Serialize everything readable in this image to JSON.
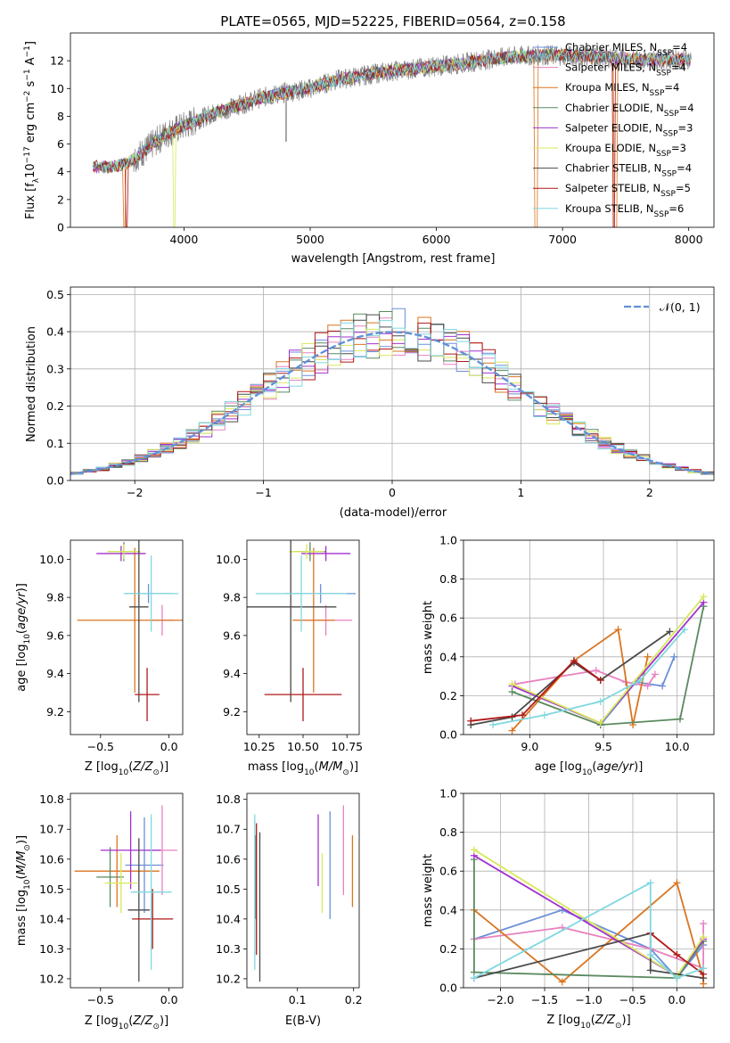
{
  "figure_title": "PLATE=0565, MJD=52225, FIBERID=0564, z=0.158",
  "colors": {
    "Chabrier MILES": "#6b8fd8",
    "Salpeter MILES": "#e882c0",
    "Kroupa MILES": "#d97520",
    "Chabrier ELODIE": "#5a8a60",
    "Salpeter ELODIE": "#a330d0",
    "Kroupa ELODIE": "#d8e85a",
    "Chabrier STELIB": "#4a4a4a",
    "Salpeter STELIB": "#b01818",
    "Kroupa STELIB": "#80d8e0",
    "data": "#808080",
    "normal": "#6090d8"
  },
  "legend_order": [
    "Chabrier MILES",
    "Salpeter MILES",
    "Kroupa MILES",
    "Chabrier ELODIE",
    "Salpeter ELODIE",
    "Kroupa ELODIE",
    "Chabrier STELIB",
    "Salpeter STELIB",
    "Kroupa STELIB"
  ],
  "chart_data": [
    {
      "id": "spectrum",
      "type": "line",
      "title": "PLATE=0565, MJD=52225, FIBERID=0564, z=0.158",
      "xlabel": "wavelength [Angstrom, rest frame]",
      "ylabel": "Flux [f_λ 10^-17 erg cm^-2 s^-1 A^-1]",
      "xlim": [
        3100,
        8200
      ],
      "ylim": [
        0,
        14
      ],
      "xticks": [
        4000,
        5000,
        6000,
        7000,
        8000
      ],
      "yticks": [
        0,
        2,
        4,
        6,
        8,
        10,
        12
      ],
      "grid": false,
      "legend_position": "top-right",
      "data_range": [
        3280,
        8020
      ],
      "continuum": [
        [
          3280,
          4.4
        ],
        [
          3400,
          4.3
        ],
        [
          3550,
          4.6
        ],
        [
          3700,
          5.6
        ],
        [
          3850,
          6.7
        ],
        [
          4000,
          7.3
        ],
        [
          4200,
          8.1
        ],
        [
          4400,
          8.7
        ],
        [
          4600,
          9.3
        ],
        [
          4800,
          9.7
        ],
        [
          5000,
          10.0
        ],
        [
          5200,
          10.6
        ],
        [
          5400,
          10.9
        ],
        [
          5600,
          11.2
        ],
        [
          5800,
          11.4
        ],
        [
          6000,
          11.6
        ],
        [
          6200,
          11.8
        ],
        [
          6400,
          12.1
        ],
        [
          6600,
          12.3
        ],
        [
          6800,
          12.4
        ],
        [
          7000,
          12.4
        ],
        [
          7200,
          12.3
        ],
        [
          7400,
          12.2
        ],
        [
          7600,
          12.1
        ],
        [
          7800,
          12.1
        ],
        [
          8020,
          12.1
        ]
      ],
      "series": [
        {
          "name": "Chabrier MILES",
          "N_SSP": 4,
          "dropouts": []
        },
        {
          "name": "Salpeter MILES",
          "N_SSP": 4,
          "dropouts": []
        },
        {
          "name": "Kroupa MILES",
          "N_SSP": 4,
          "dropouts": [
            3530,
            6790,
            7420
          ]
        },
        {
          "name": "Chabrier ELODIE",
          "N_SSP": 4,
          "dropouts": []
        },
        {
          "name": "Salpeter ELODIE",
          "N_SSP": 3,
          "dropouts": []
        },
        {
          "name": "Kroupa ELODIE",
          "N_SSP": 3,
          "dropouts": [
            3920
          ]
        },
        {
          "name": "Chabrier STELIB",
          "N_SSP": 4,
          "dropouts": []
        },
        {
          "name": "Salpeter STELIB",
          "N_SSP": 5,
          "dropouts": [
            3545,
            7410
          ]
        },
        {
          "name": "Kroupa STELIB",
          "N_SSP": 6,
          "dropouts": []
        }
      ],
      "data_spikes": [
        4810
      ]
    },
    {
      "id": "residual-hist",
      "type": "line",
      "xlabel": "(data-model)/error",
      "ylabel": "Normed distribution",
      "xlim": [
        -2.5,
        2.5
      ],
      "ylim": [
        0,
        0.52
      ],
      "xticks": [
        -2,
        -1,
        0,
        1,
        2
      ],
      "xtick_labels": [
        "−2",
        "−1",
        "0",
        "1",
        "2"
      ],
      "yticks": [
        0,
        0.1,
        0.2,
        0.3,
        0.4,
        0.5
      ],
      "ytick_labels": [
        "0.0",
        "0.1",
        "0.2",
        "0.3",
        "0.4",
        "0.5"
      ],
      "grid": true,
      "legend_position": "top-right",
      "reference": {
        "name": "𝒩(0, 1)",
        "mean": 0,
        "sigma": 1
      },
      "bin_width": 0.1
    },
    {
      "id": "age-vs-Z",
      "type": "scatter",
      "xlabel": "Z [log10(Z/Z⊙)]",
      "ylabel": "age  [log10(age/yr)]",
      "xlim": [
        -0.72,
        0.1
      ],
      "ylim": [
        9.08,
        10.1
      ],
      "xticks": [
        -0.5,
        0
      ],
      "xtick_labels": [
        "−0.5",
        "0.0"
      ],
      "yticks": [
        9.2,
        9.4,
        9.6,
        9.8,
        10.0
      ],
      "ytick_labels": [
        "9.2",
        "9.4",
        "9.6",
        "9.8",
        "10.0"
      ],
      "grid": false,
      "points": [
        {
          "series": "Chabrier MILES",
          "x": -0.15,
          "xerr": 0.17,
          "y": 9.82,
          "yerr": 0.05
        },
        {
          "series": "Salpeter MILES",
          "x": -0.05,
          "xerr": 0.09,
          "y": 9.68,
          "yerr": 0.08
        },
        {
          "series": "Kroupa MILES",
          "x": -0.25,
          "xerr": 0.42,
          "y": 9.68,
          "yerr": 0.38
        },
        {
          "series": "Chabrier ELODIE",
          "x": -0.33,
          "xerr": 0.12,
          "y": 10.04,
          "yerr": 0.05
        },
        {
          "series": "Salpeter ELODIE",
          "x": -0.35,
          "xerr": 0.18,
          "y": 10.03,
          "yerr": 0.04
        },
        {
          "series": "Kroupa ELODIE",
          "x": -0.33,
          "xerr": 0.12,
          "y": 10.04,
          "yerr": 0.04
        },
        {
          "series": "Chabrier STELIB",
          "x": -0.22,
          "xerr": 0.07,
          "y": 9.75,
          "yerr": 0.5
        },
        {
          "series": "Salpeter STELIB",
          "x": -0.16,
          "xerr": 0.09,
          "y": 9.29,
          "yerr": 0.14
        },
        {
          "series": "Kroupa STELIB",
          "x": -0.13,
          "xerr": 0.2,
          "y": 9.82,
          "yerr": 0.2
        }
      ]
    },
    {
      "id": "age-vs-mass",
      "type": "scatter",
      "xlabel": "mass [log10(M/M⊙)]",
      "xlim": [
        10.18,
        10.82
      ],
      "ylim": [
        9.08,
        10.1
      ],
      "xticks": [
        10.25,
        10.5,
        10.75
      ],
      "xtick_labels": [
        "10.25",
        "10.50",
        "10.75"
      ],
      "yticks": [
        9.2,
        9.4,
        9.6,
        9.8,
        10.0
      ],
      "ytick_labels": [
        "9.2",
        "9.4",
        "9.6",
        "9.8",
        "10.0"
      ],
      "grid": false,
      "points": [
        {
          "series": "Chabrier MILES",
          "x": 10.6,
          "xerr": 0.2,
          "y": 9.82,
          "yerr": 0.05
        },
        {
          "series": "Salpeter MILES",
          "x": 10.63,
          "xerr": 0.15,
          "y": 9.68,
          "yerr": 0.08
        },
        {
          "series": "Kroupa MILES",
          "x": 10.56,
          "xerr": 0.12,
          "y": 9.68,
          "yerr": 0.38
        },
        {
          "series": "Chabrier ELODIE",
          "x": 10.54,
          "xerr": 0.09,
          "y": 10.04,
          "yerr": 0.05
        },
        {
          "series": "Salpeter ELODIE",
          "x": 10.63,
          "xerr": 0.14,
          "y": 10.03,
          "yerr": 0.04
        },
        {
          "series": "Kroupa ELODIE",
          "x": 10.52,
          "xerr": 0.1,
          "y": 10.04,
          "yerr": 0.04
        },
        {
          "series": "Chabrier STELIB",
          "x": 10.43,
          "xerr": 0.26,
          "y": 9.75,
          "yerr": 0.5
        },
        {
          "series": "Salpeter STELIB",
          "x": 10.5,
          "xerr": 0.22,
          "y": 9.29,
          "yerr": 0.14
        },
        {
          "series": "Kroupa STELIB",
          "x": 10.49,
          "xerr": 0.26,
          "y": 9.82,
          "yerr": 0.2
        }
      ]
    },
    {
      "id": "weight-vs-age",
      "type": "line",
      "xlabel": "age  [log10(age/yr)]",
      "ylabel": "mass weight",
      "xlim": [
        8.55,
        10.25
      ],
      "ylim": [
        0,
        1
      ],
      "xticks": [
        9.0,
        9.5,
        10.0
      ],
      "xtick_labels": [
        "9.0",
        "9.5",
        "10.0"
      ],
      "yticks": [
        0,
        0.2,
        0.4,
        0.6,
        0.8,
        1.0
      ],
      "ytick_labels": [
        "0.0",
        "0.2",
        "0.4",
        "0.6",
        "0.8",
        "1.0"
      ],
      "grid": true,
      "series": [
        {
          "name": "Chabrier MILES",
          "x": [
            9.48,
            9.72,
            9.9,
            9.98
          ],
          "y": [
            0.05,
            0.27,
            0.25,
            0.4
          ]
        },
        {
          "name": "Salpeter MILES",
          "x": [
            8.9,
            9.45,
            9.65,
            9.8,
            9.85
          ],
          "y": [
            0.26,
            0.33,
            0.27,
            0.25,
            0.31
          ]
        },
        {
          "name": "Kroupa MILES",
          "x": [
            8.88,
            9.3,
            9.6,
            9.7,
            9.8
          ],
          "y": [
            0.02,
            0.38,
            0.54,
            0.05,
            0.4
          ]
        },
        {
          "name": "Chabrier ELODIE",
          "x": [
            8.88,
            9.48,
            10.02,
            10.18
          ],
          "y": [
            0.22,
            0.05,
            0.08,
            0.66
          ]
        },
        {
          "name": "Salpeter ELODIE",
          "x": [
            8.88,
            9.48,
            10.18
          ],
          "y": [
            0.25,
            0.06,
            0.68
          ]
        },
        {
          "name": "Kroupa ELODIE",
          "x": [
            8.88,
            9.48,
            10.18
          ],
          "y": [
            0.26,
            0.06,
            0.71
          ]
        },
        {
          "name": "Chabrier STELIB",
          "x": [
            8.6,
            8.88,
            9.3,
            9.48,
            9.95
          ],
          "y": [
            0.05,
            0.09,
            0.37,
            0.28,
            0.53
          ]
        },
        {
          "name": "Salpeter STELIB",
          "x": [
            8.6,
            8.95,
            9.3,
            9.48
          ],
          "y": [
            0.07,
            0.1,
            0.38,
            0.28
          ]
        },
        {
          "name": "Kroupa STELIB",
          "x": [
            8.75,
            9.1,
            9.48,
            9.75,
            10.05
          ],
          "y": [
            0.05,
            0.1,
            0.17,
            0.28,
            0.54
          ]
        }
      ]
    },
    {
      "id": "mass-vs-Z",
      "type": "scatter",
      "xlabel": "Z [log10(Z/Z⊙)]",
      "ylabel": "mass [log10(M/M⊙)]",
      "xlim": [
        -0.72,
        0.1
      ],
      "ylim": [
        10.17,
        10.82
      ],
      "xticks": [
        -0.5,
        0
      ],
      "xtick_labels": [
        "−0.5",
        "0.0"
      ],
      "yticks": [
        10.2,
        10.3,
        10.4,
        10.5,
        10.6,
        10.7,
        10.8
      ],
      "ytick_labels": [
        "10.2",
        "10.3",
        "10.4",
        "10.5",
        "10.6",
        "10.7",
        "10.8"
      ],
      "grid": false,
      "points": [
        {
          "series": "Chabrier MILES",
          "x": -0.18,
          "xerr": 0.14,
          "y": 10.58,
          "yerr": 0.16
        },
        {
          "series": "Salpeter MILES",
          "x": -0.05,
          "xerr": 0.11,
          "y": 10.63,
          "yerr": 0.15
        },
        {
          "series": "Kroupa MILES",
          "x": -0.38,
          "xerr": 0.31,
          "y": 10.56,
          "yerr": 0.12
        },
        {
          "series": "Chabrier ELODIE",
          "x": -0.43,
          "xerr": 0.1,
          "y": 10.54,
          "yerr": 0.1
        },
        {
          "series": "Salpeter ELODIE",
          "x": -0.28,
          "xerr": 0.22,
          "y": 10.63,
          "yerr": 0.13
        },
        {
          "series": "Kroupa ELODIE",
          "x": -0.35,
          "xerr": 0.12,
          "y": 10.52,
          "yerr": 0.1
        },
        {
          "series": "Chabrier STELIB",
          "x": -0.22,
          "xerr": 0.08,
          "y": 10.43,
          "yerr": 0.24
        },
        {
          "series": "Salpeter STELIB",
          "x": -0.12,
          "xerr": 0.15,
          "y": 10.4,
          "yerr": 0.1
        },
        {
          "series": "Kroupa STELIB",
          "x": -0.13,
          "xerr": 0.15,
          "y": 10.49,
          "yerr": 0.26
        }
      ]
    },
    {
      "id": "mass-vs-EBV",
      "type": "scatter",
      "xlabel": "E(B-V)",
      "xlim": [
        0.01,
        0.21
      ],
      "ylim": [
        10.17,
        10.82
      ],
      "xticks": [
        0.1,
        0.2
      ],
      "xtick_labels": [
        "0.1",
        "0.2"
      ],
      "yticks": [
        10.2,
        10.3,
        10.4,
        10.5,
        10.6,
        10.7,
        10.8
      ],
      "ytick_labels": [
        "10.2",
        "10.3",
        "10.4",
        "10.5",
        "10.6",
        "10.7",
        "10.8"
      ],
      "grid": false,
      "points": [
        {
          "series": "Chabrier MILES",
          "x": 0.158,
          "xerr": 0,
          "y": 10.58,
          "yerr": 0.18
        },
        {
          "series": "Salpeter MILES",
          "x": 0.182,
          "xerr": 0,
          "y": 10.63,
          "yerr": 0.15
        },
        {
          "series": "Kroupa MILES",
          "x": 0.198,
          "xerr": 0,
          "y": 10.56,
          "yerr": 0.12
        },
        {
          "series": "Chabrier ELODIE",
          "x": 0.026,
          "xerr": 0,
          "y": 10.54,
          "yerr": 0.14
        },
        {
          "series": "Salpeter ELODIE",
          "x": 0.137,
          "xerr": 0,
          "y": 10.63,
          "yerr": 0.12
        },
        {
          "series": "Kroupa ELODIE",
          "x": 0.144,
          "xerr": 0,
          "y": 10.52,
          "yerr": 0.1
        },
        {
          "series": "Chabrier STELIB",
          "x": 0.033,
          "xerr": 0,
          "y": 10.44,
          "yerr": 0.25
        },
        {
          "series": "Salpeter STELIB",
          "x": 0.027,
          "xerr": 0,
          "y": 10.5,
          "yerr": 0.22
        },
        {
          "series": "Kroupa STELIB",
          "x": 0.024,
          "xerr": 0,
          "y": 10.49,
          "yerr": 0.26
        }
      ]
    },
    {
      "id": "weight-vs-Z",
      "type": "line",
      "xlabel": "Z [log10(Z/Z⊙)]",
      "ylabel": "mass weight",
      "xlim": [
        -2.42,
        0.42
      ],
      "ylim": [
        0,
        1
      ],
      "xticks": [
        -2.0,
        -1.5,
        -1.0,
        -0.5,
        0.0
      ],
      "xtick_labels": [
        "−2.0",
        "−1.5",
        "−1.0",
        "−0.5",
        "0.0"
      ],
      "yticks": [
        0,
        0.2,
        0.4,
        0.6,
        0.8,
        1.0
      ],
      "ytick_labels": [
        "0.0",
        "0.2",
        "0.4",
        "0.6",
        "0.8",
        "1.0"
      ],
      "grid": true,
      "series": [
        {
          "name": "Chabrier MILES",
          "x": [
            -2.3,
            -1.3,
            -0.3,
            0.0,
            0.3
          ],
          "y": [
            0.25,
            0.4,
            0.2,
            0.05,
            0.22
          ]
        },
        {
          "name": "Salpeter MILES",
          "x": [
            -2.3,
            -1.3,
            -0.3,
            0.3,
            0.3
          ],
          "y": [
            0.25,
            0.31,
            0.2,
            0.1,
            0.33
          ]
        },
        {
          "name": "Kroupa MILES",
          "x": [
            -2.3,
            -1.3,
            0.0,
            0.3,
            0.3
          ],
          "y": [
            0.4,
            0.03,
            0.54,
            0.05,
            0.02
          ]
        },
        {
          "name": "Chabrier ELODIE",
          "x": [
            -2.3,
            -2.3,
            0.0,
            0.3
          ],
          "y": [
            0.66,
            0.08,
            0.05,
            0.24
          ]
        },
        {
          "name": "Salpeter ELODIE",
          "x": [
            -2.3,
            0.0,
            0.3
          ],
          "y": [
            0.68,
            0.06,
            0.25
          ]
        },
        {
          "name": "Kroupa ELODIE",
          "x": [
            -2.3,
            0.0,
            0.3
          ],
          "y": [
            0.71,
            0.06,
            0.26
          ]
        },
        {
          "name": "Chabrier STELIB",
          "x": [
            -2.3,
            -0.3,
            -0.3,
            0.3
          ],
          "y": [
            0.05,
            0.28,
            0.09,
            0.05
          ]
        },
        {
          "name": "Salpeter STELIB",
          "x": [
            -0.3,
            0.0,
            0.3
          ],
          "y": [
            0.28,
            0.17,
            0.07
          ]
        },
        {
          "name": "Kroupa STELIB",
          "x": [
            -2.3,
            -0.3,
            -0.3,
            0.0,
            0.3
          ],
          "y": [
            0.05,
            0.54,
            0.17,
            0.05,
            0.1
          ]
        }
      ]
    }
  ]
}
